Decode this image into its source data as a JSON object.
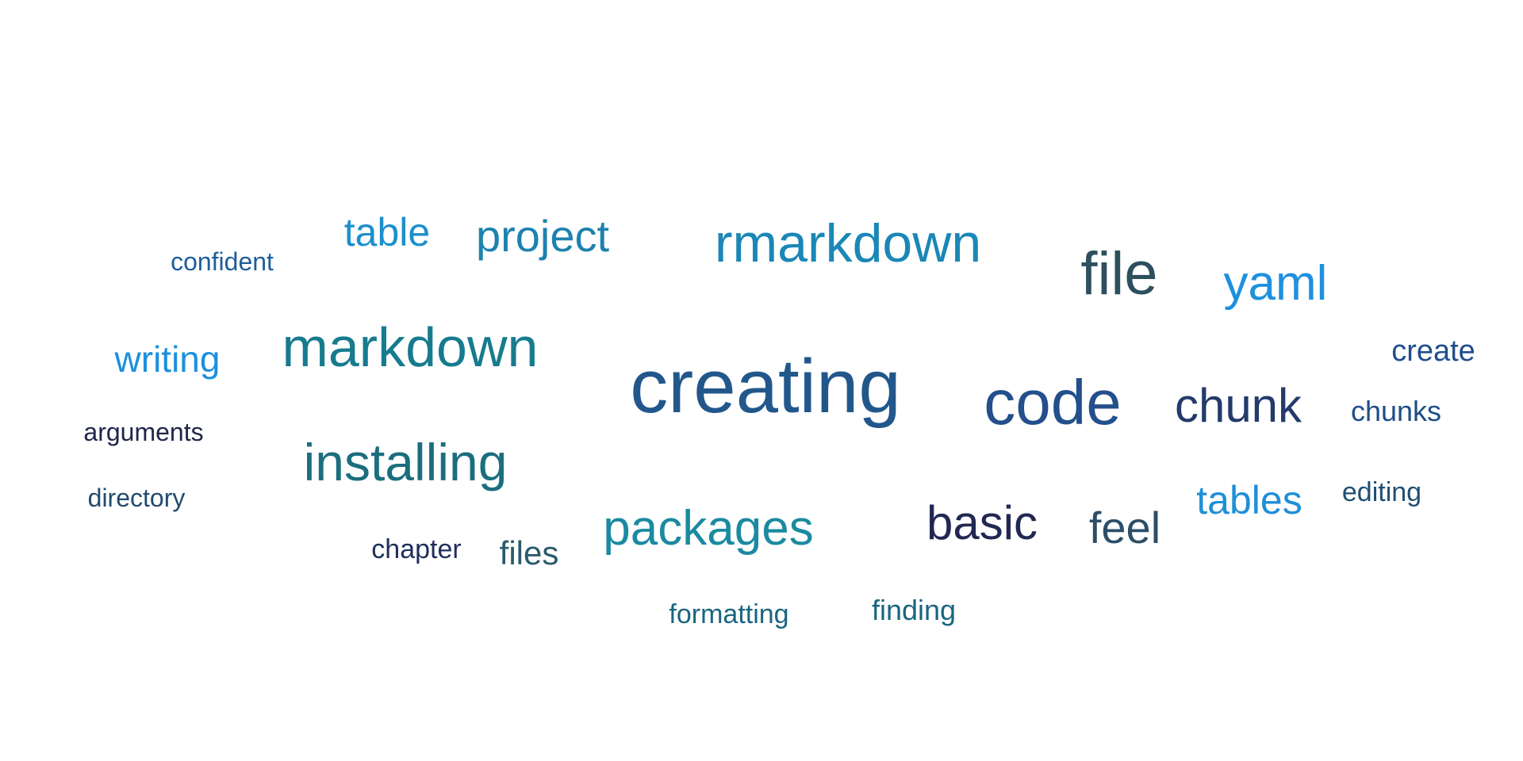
{
  "words": [
    {
      "text": "creating",
      "color": "#22578C"
    },
    {
      "text": "code",
      "color": "#234F8C"
    },
    {
      "text": "markdown",
      "color": "#177B8E"
    },
    {
      "text": "rmarkdown",
      "color": "#1A87B6"
    },
    {
      "text": "file",
      "color": "#2C505D"
    },
    {
      "text": "installing",
      "color": "#1B6E7E"
    },
    {
      "text": "packages",
      "color": "#1A8AA0"
    },
    {
      "text": "yaml",
      "color": "#1E90E0"
    },
    {
      "text": "chunk",
      "color": "#233A6B"
    },
    {
      "text": "basic",
      "color": "#202852"
    },
    {
      "text": "project",
      "color": "#1D82B0"
    },
    {
      "text": "feel",
      "color": "#2C4E68"
    },
    {
      "text": "table",
      "color": "#1C8FCC"
    },
    {
      "text": "tables",
      "color": "#1E8FD8"
    },
    {
      "text": "writing",
      "color": "#1C90DC"
    },
    {
      "text": "files",
      "color": "#2A5A6C"
    },
    {
      "text": "create",
      "color": "#1F4E8C"
    },
    {
      "text": "chunks",
      "color": "#1F4E86"
    },
    {
      "text": "finding",
      "color": "#1A6580"
    },
    {
      "text": "formatting",
      "color": "#1A6580"
    },
    {
      "text": "chapter",
      "color": "#1F2E5C"
    },
    {
      "text": "confident",
      "color": "#1C5E9A"
    },
    {
      "text": "editing",
      "color": "#1F4F72"
    },
    {
      "text": "directory",
      "color": "#234A70"
    },
    {
      "text": "arguments",
      "color": "#20264A"
    }
  ]
}
